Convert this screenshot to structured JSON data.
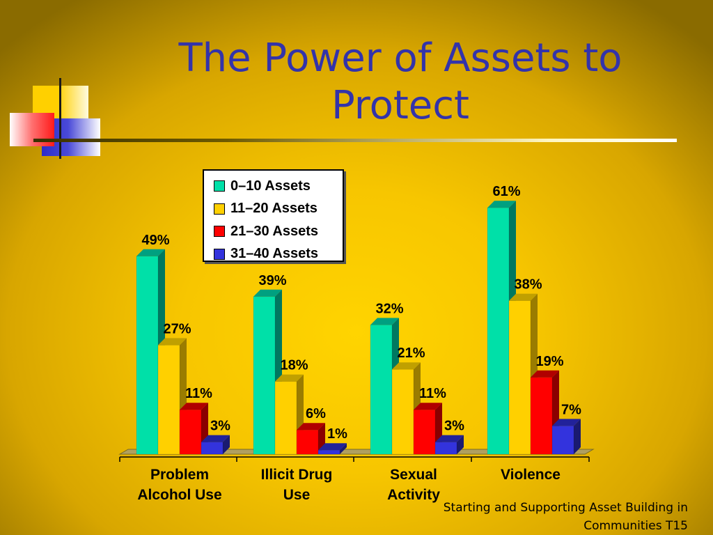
{
  "slide": {
    "title": "The Power of Assets to Protect",
    "footer_line1": "Starting and Supporting Asset Building in",
    "footer_line2": "Communities  T15"
  },
  "colors": {
    "title": "#3333aa",
    "series": [
      "#00e0a8",
      "#ffd000",
      "#ff0000",
      "#3333dd"
    ],
    "series_side": [
      "#007860",
      "#9a7c00",
      "#8a0000",
      "#1a1a70"
    ],
    "series_top": [
      "#00a080",
      "#c0a000",
      "#b00000",
      "#22229a"
    ]
  },
  "chart_data": {
    "type": "bar",
    "categories": [
      "Problem\nAlcohol Use",
      "Illicit Drug\nUse",
      "Sexual\nActivity",
      "Violence"
    ],
    "series": [
      {
        "name": "0–10 Assets",
        "values": [
          49,
          39,
          32,
          61
        ]
      },
      {
        "name": "11–20 Assets",
        "values": [
          27,
          18,
          21,
          38
        ]
      },
      {
        "name": "21–30 Assets",
        "values": [
          11,
          6,
          11,
          19
        ]
      },
      {
        "name": "31–40 Assets",
        "values": [
          3,
          1,
          3,
          7
        ]
      }
    ],
    "value_suffix": "%",
    "ylim": [
      0,
      70
    ],
    "grid": false,
    "legend_position": "top-left",
    "title": "",
    "xlabel": "",
    "ylabel": ""
  }
}
